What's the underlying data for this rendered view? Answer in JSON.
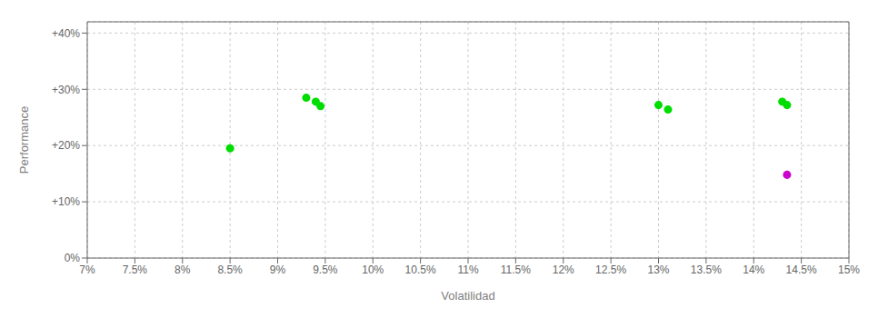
{
  "chart_data": {
    "type": "scatter",
    "x_label": "Volatilidad",
    "y_label": "Performance",
    "xlim": [
      0.07,
      0.15
    ],
    "ylim": [
      0.0,
      0.42
    ],
    "xticks": [
      {
        "value": 0.07,
        "label": "7%"
      },
      {
        "value": 0.075,
        "label": "7.5%"
      },
      {
        "value": 0.08,
        "label": "8%"
      },
      {
        "value": 0.085,
        "label": "8.5%"
      },
      {
        "value": 0.09,
        "label": "9%"
      },
      {
        "value": 0.095,
        "label": "9.5%"
      },
      {
        "value": 0.1,
        "label": "10%"
      },
      {
        "value": 0.105,
        "label": "10.5%"
      },
      {
        "value": 0.11,
        "label": "11%"
      },
      {
        "value": 0.115,
        "label": "11.5%"
      },
      {
        "value": 0.12,
        "label": "12%"
      },
      {
        "value": 0.125,
        "label": "12.5%"
      },
      {
        "value": 0.13,
        "label": "13%"
      },
      {
        "value": 0.135,
        "label": "13.5%"
      },
      {
        "value": 0.14,
        "label": "14%"
      },
      {
        "value": 0.145,
        "label": "14.5%"
      },
      {
        "value": 0.15,
        "label": "15%"
      }
    ],
    "yticks": [
      {
        "value": 0.0,
        "label": "0%"
      },
      {
        "value": 0.1,
        "label": "+10%"
      },
      {
        "value": 0.2,
        "label": "+20%"
      },
      {
        "value": 0.3,
        "label": "+30%"
      },
      {
        "value": 0.4,
        "label": "+40%"
      }
    ],
    "grid": true,
    "series": [
      {
        "color": "#00dd00",
        "x": [
          0.085,
          0.093,
          0.094,
          0.0945,
          0.13,
          0.131,
          0.143,
          0.1435
        ],
        "values": [
          0.195,
          0.285,
          0.278,
          0.27,
          0.272,
          0.264,
          0.278,
          0.272
        ]
      },
      {
        "color": "#cc00cc",
        "x": [
          0.1435
        ],
        "values": [
          0.148
        ]
      }
    ]
  }
}
